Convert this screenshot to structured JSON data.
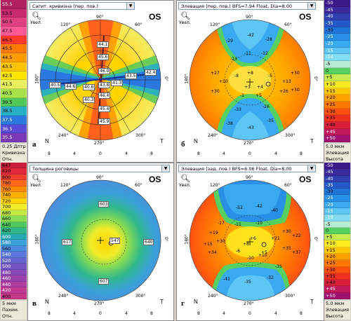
{
  "scales": {
    "top": {
      "values": [
        "55.5",
        "53.5",
        "50.5",
        "47.5",
        "46.5",
        "45.5",
        "44.5",
        "43.5",
        "42.5",
        "41.5",
        "40.5",
        "39.5",
        "38.5",
        "37.5",
        "36.5",
        "35.5"
      ],
      "colors": [
        "#b02060",
        "#c82a70",
        "#e04080",
        "#ff5a96",
        "#ff3a2a",
        "#ff7a00",
        "#ff9e00",
        "#ffc400",
        "#ffe600",
        "#e8f060",
        "#a8e24a",
        "#52c85a",
        "#28b0c8",
        "#2a78e0",
        "#5a4ad8",
        "#7a3ab8"
      ],
      "unit": "0.25 Дптр",
      "label": "Кривизна",
      "mode": "Отн."
    },
    "top_right": {
      "values": [
        "-50",
        "-45",
        "-40",
        "-35",
        "-30",
        "-25",
        "-20",
        "-15",
        "-10",
        "-5",
        "0",
        "+5",
        "+10",
        "+15",
        "+20",
        "+25",
        "+30",
        "+35",
        "+40",
        "+45",
        "+50"
      ],
      "colors": [
        "#3c1a8c",
        "#3a2a9c",
        "#3040b0",
        "#2458c8",
        "#1f74d8",
        "#2990e8",
        "#3aaaf0",
        "#5ec6f4",
        "#82dcf2",
        "#b8ecd4",
        "#56d060",
        "#c8ec50",
        "#ffea20",
        "#ffc800",
        "#ffa000",
        "#ff7800",
        "#ff5010",
        "#f03020",
        "#d8203a",
        "#c0185a",
        "#a01070"
      ],
      "unit": "5.0 мкм",
      "label": "Элевация",
      "mode": "Высота"
    },
    "bottom": {
      "values": [
        "847",
        "820",
        "800",
        "780",
        "760",
        "740",
        "720",
        "700",
        "680",
        "660",
        "640",
        "620",
        "600",
        "580",
        "560",
        "540",
        "520",
        "500",
        "480",
        "460",
        "440",
        "420",
        "400"
      ],
      "colors": [
        "#c81e3c",
        "#e0283a",
        "#f04030",
        "#ff6a1a",
        "#ff8c00",
        "#ffb000",
        "#ffd400",
        "#f2ec2a",
        "#c0e844",
        "#88dc52",
        "#4cc85e",
        "#30b88c",
        "#26a8b0",
        "#3aa0d8",
        "#4c8ce0",
        "#5c78dc",
        "#6864d0",
        "#7454c4",
        "#8a48b8",
        "#9c42ac",
        "#b03ea0",
        "#c03a94",
        "#c83888"
      ],
      "unit": "5 мкм",
      "label": "Пахим.",
      "mode": "Отн."
    },
    "bottom_right": {
      "values": [
        "-50",
        "-45",
        "-40",
        "-35",
        "-30",
        "-25",
        "-20",
        "-15",
        "-10",
        "-5",
        "0",
        "+5",
        "+10",
        "+15",
        "+20",
        "+25",
        "+30",
        "+35",
        "+40",
        "+45",
        "+50"
      ],
      "colors": [
        "#3c1a8c",
        "#3a2a9c",
        "#3040b0",
        "#2458c8",
        "#1f74d8",
        "#2990e8",
        "#3aaaf0",
        "#5ec6f4",
        "#82dcf2",
        "#b8ecd4",
        "#56d060",
        "#c8ec50",
        "#ffea20",
        "#ffc800",
        "#ffa000",
        "#ff7800",
        "#ff5010",
        "#f03020",
        "#d8203a",
        "#c0185a",
        "#a01070"
      ],
      "unit": "5.0 мкм",
      "label": "Элевация",
      "mode": "Высота"
    }
  },
  "panels": {
    "a": {
      "dropdown": "Сагит. кривизна (пер. пов.)",
      "letter": "а",
      "eye": "OS",
      "zoom": "Увел.",
      "values": [
        "44.1",
        "45.6",
        "46.0",
        "43.5",
        "42.4",
        "40.6",
        "43.8",
        "44.6",
        "41.3",
        "40.5",
        "40.3",
        "46.4",
        "45.4",
        "45.9"
      ]
    },
    "b": {
      "dropdown": "Элевация (пер. пов.)   BFS=7.94 Float, Dia=8.00",
      "letter": "б",
      "eye": "OS",
      "zoom": "Увел.",
      "values": [
        "-29",
        "-42",
        "-28",
        "-23",
        "-11",
        "-12",
        "+27",
        "+30",
        "+10",
        "+13",
        "+30",
        "+30",
        "+26",
        "-8",
        "-5",
        "-38",
        "-43",
        "-35",
        "-33",
        "-26",
        "+3",
        "-1",
        "+5",
        "+4",
        "+8"
      ]
    },
    "c": {
      "dropdown": "Толщина роговицы",
      "letter": "в",
      "eye": "OS",
      "zoom": "Увел.",
      "values": [
        "603",
        "617",
        "547",
        "640",
        "607"
      ]
    },
    "d": {
      "dropdown": "Элевация (зад. пов.)   BFS=6.06 Float, Dia=8.00",
      "letter": "г",
      "eye": "OS",
      "zoom": "Увел.",
      "values": [
        "-52",
        "-42",
        "-40",
        "-17",
        "-11",
        "-10",
        "+19",
        "+15",
        "+30",
        "+35",
        "+22",
        "+34",
        "+30",
        "+37",
        "-41",
        "-35",
        "-32",
        "-35",
        "+8",
        "+6",
        "+5",
        "-6",
        "+10",
        "+21",
        "-10"
      ]
    }
  },
  "axis": {
    "top": "90°",
    "bottom": "270°",
    "left": "180°",
    "right": "0°",
    "d60": "60°",
    "d120": "120°",
    "d240": "240°",
    "d300": "300°",
    "nasal": "N",
    "temporal": "T",
    "ticks": [
      "8",
      "4",
      "0",
      "4",
      "8"
    ]
  },
  "colors": {
    "panel_bg": "#ffffff",
    "window_bg": "#d4d0c8"
  }
}
